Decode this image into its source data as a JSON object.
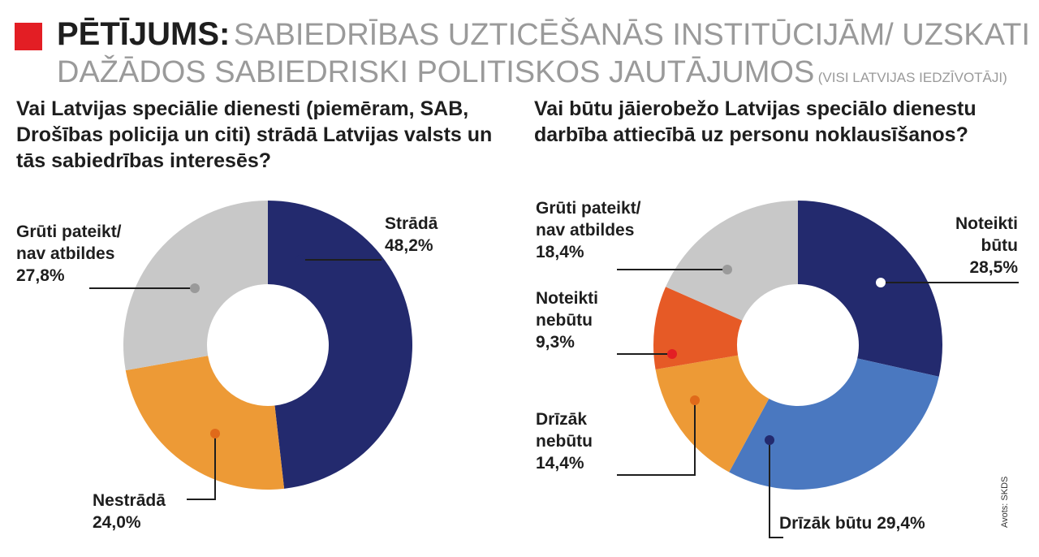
{
  "header": {
    "label": "PĒTĪJUMS:",
    "title_line1": "SABIEDRĪBAS UZTICĒŠANĀS INSTITŪCIJĀM/ UZSKATI",
    "title_line2": "DAŽĀDOS SABIEDRISKI POLITISKOS JAUTĀJUMOS",
    "subtitle": "(VISI LATVIJAS IEDZĪVOTĀJI)"
  },
  "source": "Avots: SKDS",
  "chart_data": [
    {
      "type": "pie",
      "variant": "donut",
      "title": "Vai Latvijas speciālie dienesti (piemēram, SAB, Drošības policija un citi) strādā Latvijas valsts un tās sabiedrības interesēs?",
      "slices": [
        {
          "label": "Strādā",
          "value": 48.2,
          "value_text": "48,2%",
          "color": "#232a6e"
        },
        {
          "label": "Nestrādā",
          "value": 24.0,
          "value_text": "24,0%",
          "color": "#ed9a36"
        },
        {
          "label": "Grūti pateikt/\nnav atbildes",
          "value": 27.8,
          "value_text": "27,8%",
          "color": "#c8c8c8"
        }
      ]
    },
    {
      "type": "pie",
      "variant": "donut",
      "title": "Vai būtu jāierobežo Latvijas speciālo dienestu darbība attiecībā uz personu noklausīšanos?",
      "slices": [
        {
          "label": "Noteikti\nbūtu",
          "value": 28.5,
          "value_text": "28,5%",
          "color": "#232a6e"
        },
        {
          "label": "Drīzāk būtu",
          "value": 29.4,
          "value_text": "29,4%",
          "color": "#4a78c0"
        },
        {
          "label": "Drīzāk\nnebūtu",
          "value": 14.4,
          "value_text": "14,4%",
          "color": "#ed9a36"
        },
        {
          "label": "Noteikti\nnebūtu",
          "value": 9.3,
          "value_text": "9,3%",
          "color": "#e65a26"
        },
        {
          "label": "Grūti pateikt/\nnav atbildes",
          "value": 18.4,
          "value_text": "18,4%",
          "color": "#c8c8c8"
        }
      ]
    }
  ]
}
